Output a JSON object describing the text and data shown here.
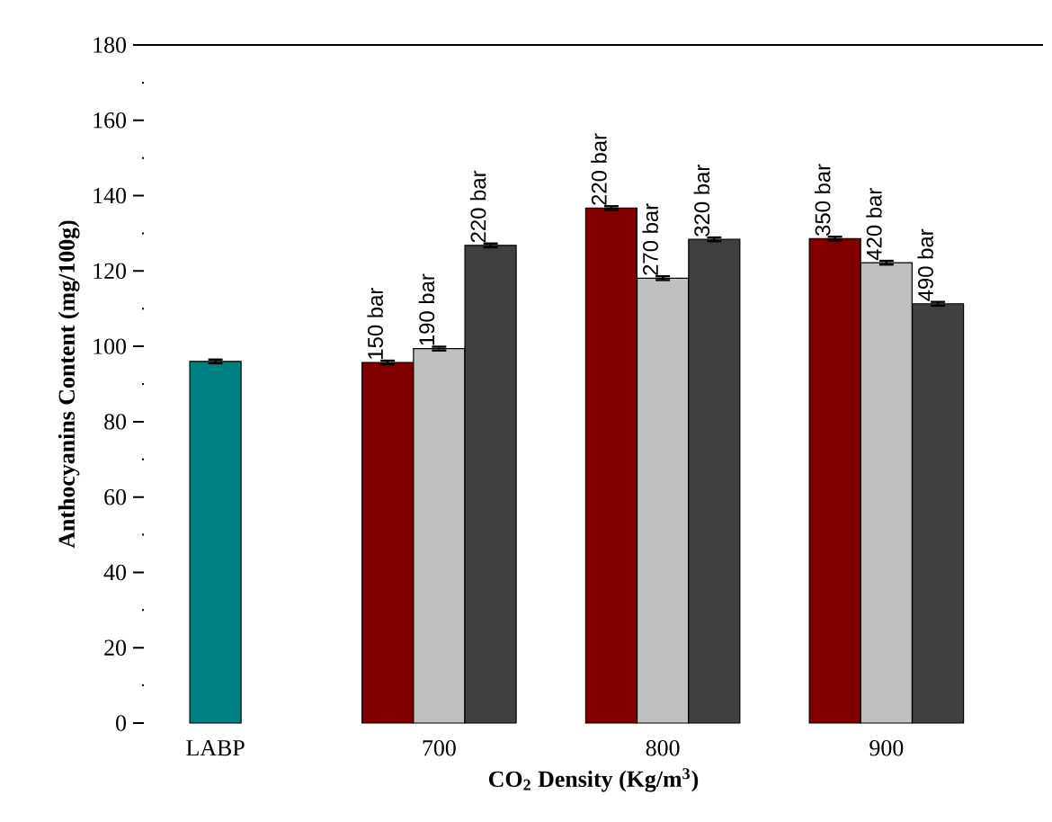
{
  "chart_data": {
    "type": "bar",
    "xlabel": "CO$_{2}$ Density (Kg/m$^{3}$)",
    "ylabel": "Anthocyanins Content (mg/100g)",
    "categories": [
      "LABP",
      "700",
      "800",
      "900"
    ],
    "series": [
      {
        "color": "#008080",
        "values": [
          96.0,
          null,
          null,
          null
        ],
        "errors": [
          0.5,
          null,
          null,
          null
        ]
      },
      {
        "color": "#800000",
        "values": [
          null,
          95.7,
          136.7,
          128.6
        ],
        "errors": [
          null,
          0.5,
          0.5,
          0.5
        ]
      },
      {
        "color": "#c0c0c0",
        "values": [
          null,
          99.4,
          118.1,
          122.2
        ],
        "errors": [
          null,
          0.5,
          0.5,
          0.5
        ]
      },
      {
        "color": "#404040",
        "values": [
          null,
          126.8,
          128.4,
          111.3
        ],
        "errors": [
          null,
          0.5,
          0.5,
          0.5
        ]
      }
    ],
    "annotations": [
      "150 bar",
      "190 bar",
      "220 bar",
      "220 bar",
      "270 bar",
      "320 bar",
      "350 bar",
      "420 bar",
      "490 bar"
    ],
    "ylim": [
      0,
      180
    ],
    "yticks": [
      0,
      20,
      40,
      60,
      80,
      100,
      120,
      140,
      160,
      180
    ],
    "grid": false
  }
}
